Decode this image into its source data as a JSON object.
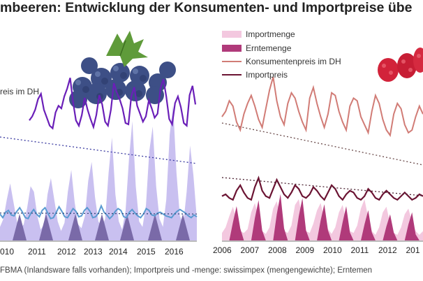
{
  "title": "mbeeren: Entwicklung der Konsumenten- und Importpreise übe",
  "footnote": "FBMA (Inlandsware falls vorhanden); Importpreis und -menge: swissimpex (mengengewichte); Erntemen",
  "colors": {
    "left_price": "#6a1fb8",
    "left_import_price": "#5a9bd1",
    "left_import_qty": "#c9c0f0",
    "left_harvest": "#7a6aa8",
    "right_price": "#d17c76",
    "right_import_price": "#6b1433",
    "right_import_qty": "#f3c8df",
    "right_harvest": "#b03a7a",
    "trend": "#555555"
  },
  "chart_data": [
    {
      "type": "line",
      "fruit": "Heidelbeeren",
      "x_ticks": [
        "010",
        "2011",
        "2012",
        "2013",
        "2014",
        "2015",
        "2016"
      ],
      "series": [
        {
          "name": "reis im DH",
          "kind": "line",
          "values": [
            62,
            65,
            70,
            78,
            82,
            70,
            64,
            58,
            56,
            68,
            73,
            71,
            80,
            86,
            94,
            76,
            62,
            58,
            66,
            79,
            70,
            63,
            57,
            66,
            81,
            74,
            61,
            58,
            70,
            90,
            83,
            78,
            71,
            60,
            59,
            80,
            87,
            73,
            67,
            61,
            65,
            77,
            71,
            64,
            67,
            86,
            93,
            80,
            63,
            59,
            75,
            80,
            72,
            60,
            58,
            81,
            88,
            74
          ]
        },
        {
          "name": "Importpreis",
          "kind": "line",
          "values": [
            26,
            22,
            28,
            30,
            25,
            24,
            29,
            33,
            28,
            22,
            21,
            27,
            31,
            26,
            23,
            30,
            33,
            27,
            21,
            22,
            28,
            34,
            29,
            23,
            22,
            27,
            32,
            29,
            23,
            24,
            30,
            33,
            29,
            22,
            23,
            27,
            35,
            28,
            25,
            21,
            24,
            29,
            32,
            30,
            23,
            22,
            28,
            31,
            27,
            24,
            22,
            26,
            32,
            30,
            25,
            24,
            27,
            28,
            26,
            24,
            23,
            22,
            26,
            29,
            31,
            29,
            27,
            24,
            22,
            25,
            23
          ]
        },
        {
          "name": "Importmenge",
          "kind": "area",
          "values": [
            10,
            16,
            30,
            42,
            28,
            14,
            8,
            12,
            24,
            40,
            36,
            18,
            8,
            12,
            34,
            46,
            30,
            14,
            7,
            13,
            36,
            52,
            28,
            12,
            9,
            18,
            44,
            58,
            32,
            14,
            10,
            16,
            50,
            76,
            34,
            14,
            8,
            22,
            60,
            88,
            40,
            14,
            10,
            26,
            66,
            84,
            40,
            16,
            10,
            30,
            78,
            100,
            50,
            18,
            12,
            36,
            70,
            48,
            16
          ]
        },
        {
          "name": "Erntemenge",
          "kind": "area",
          "peaks": [
            2010,
            2011,
            2012,
            2013,
            2014,
            2015,
            2016
          ]
        }
      ],
      "trendlines": [
        "reis im DH",
        "Importpreis"
      ]
    },
    {
      "type": "line",
      "fruit": "Himbeeren",
      "x_ticks": [
        "2006",
        "2007",
        "2008",
        "2009",
        "2010",
        "2011",
        "2012",
        "201"
      ],
      "series": [
        {
          "name": "Importmenge",
          "kind": "area",
          "values": [
            8,
            14,
            26,
            36,
            22,
            10,
            8,
            12,
            30,
            40,
            24,
            10,
            7,
            14,
            34,
            42,
            26,
            10,
            8,
            16,
            38,
            44,
            24,
            10,
            8,
            18,
            32,
            40,
            22,
            12,
            7,
            14,
            30,
            38,
            20,
            10,
            8,
            16,
            34,
            44,
            24,
            10,
            6,
            14,
            30,
            36,
            18,
            8,
            6,
            14,
            28,
            34,
            20,
            10,
            6,
            10
          ]
        },
        {
          "name": "Erntemenge",
          "kind": "area",
          "values": [
            0,
            0,
            0,
            18,
            34,
            12,
            0,
            0,
            0,
            22,
            40,
            10,
            0,
            0,
            0,
            26,
            46,
            12,
            0,
            0,
            0,
            24,
            42,
            10,
            0,
            0,
            0,
            20,
            36,
            10,
            0,
            0,
            0,
            18,
            34,
            8,
            0,
            0,
            0,
            16,
            30,
            8,
            0,
            0,
            0,
            14,
            26,
            8,
            0,
            0,
            0,
            16,
            28,
            6,
            0,
            0
          ]
        },
        {
          "name": "Konsumentenpreis im DH",
          "kind": "line",
          "values": [
            70,
            74,
            82,
            78,
            66,
            60,
            72,
            80,
            86,
            78,
            68,
            62,
            76,
            90,
            100,
            82,
            70,
            64,
            80,
            88,
            84,
            74,
            66,
            60,
            84,
            92,
            80,
            70,
            62,
            72,
            88,
            86,
            74,
            66,
            60,
            78,
            84,
            82,
            70,
            64,
            58,
            74,
            86,
            80,
            68,
            60,
            56,
            72,
            80,
            76,
            64,
            58,
            60,
            70,
            78,
            72
          ]
        },
        {
          "name": "Importpreis",
          "kind": "line",
          "values": [
            38,
            40,
            36,
            34,
            44,
            50,
            42,
            36,
            34,
            48,
            58,
            44,
            38,
            36,
            46,
            56,
            48,
            40,
            36,
            42,
            50,
            46,
            38,
            36,
            40,
            48,
            44,
            38,
            34,
            42,
            50,
            46,
            38,
            34,
            40,
            44,
            42,
            36,
            34,
            38,
            46,
            42,
            36,
            34,
            40,
            44,
            40,
            36,
            34,
            38,
            42,
            38,
            34,
            36,
            40,
            38
          ]
        }
      ],
      "trendlines": [
        "Konsumentenpreis im DH",
        "Importpreis"
      ]
    }
  ]
}
